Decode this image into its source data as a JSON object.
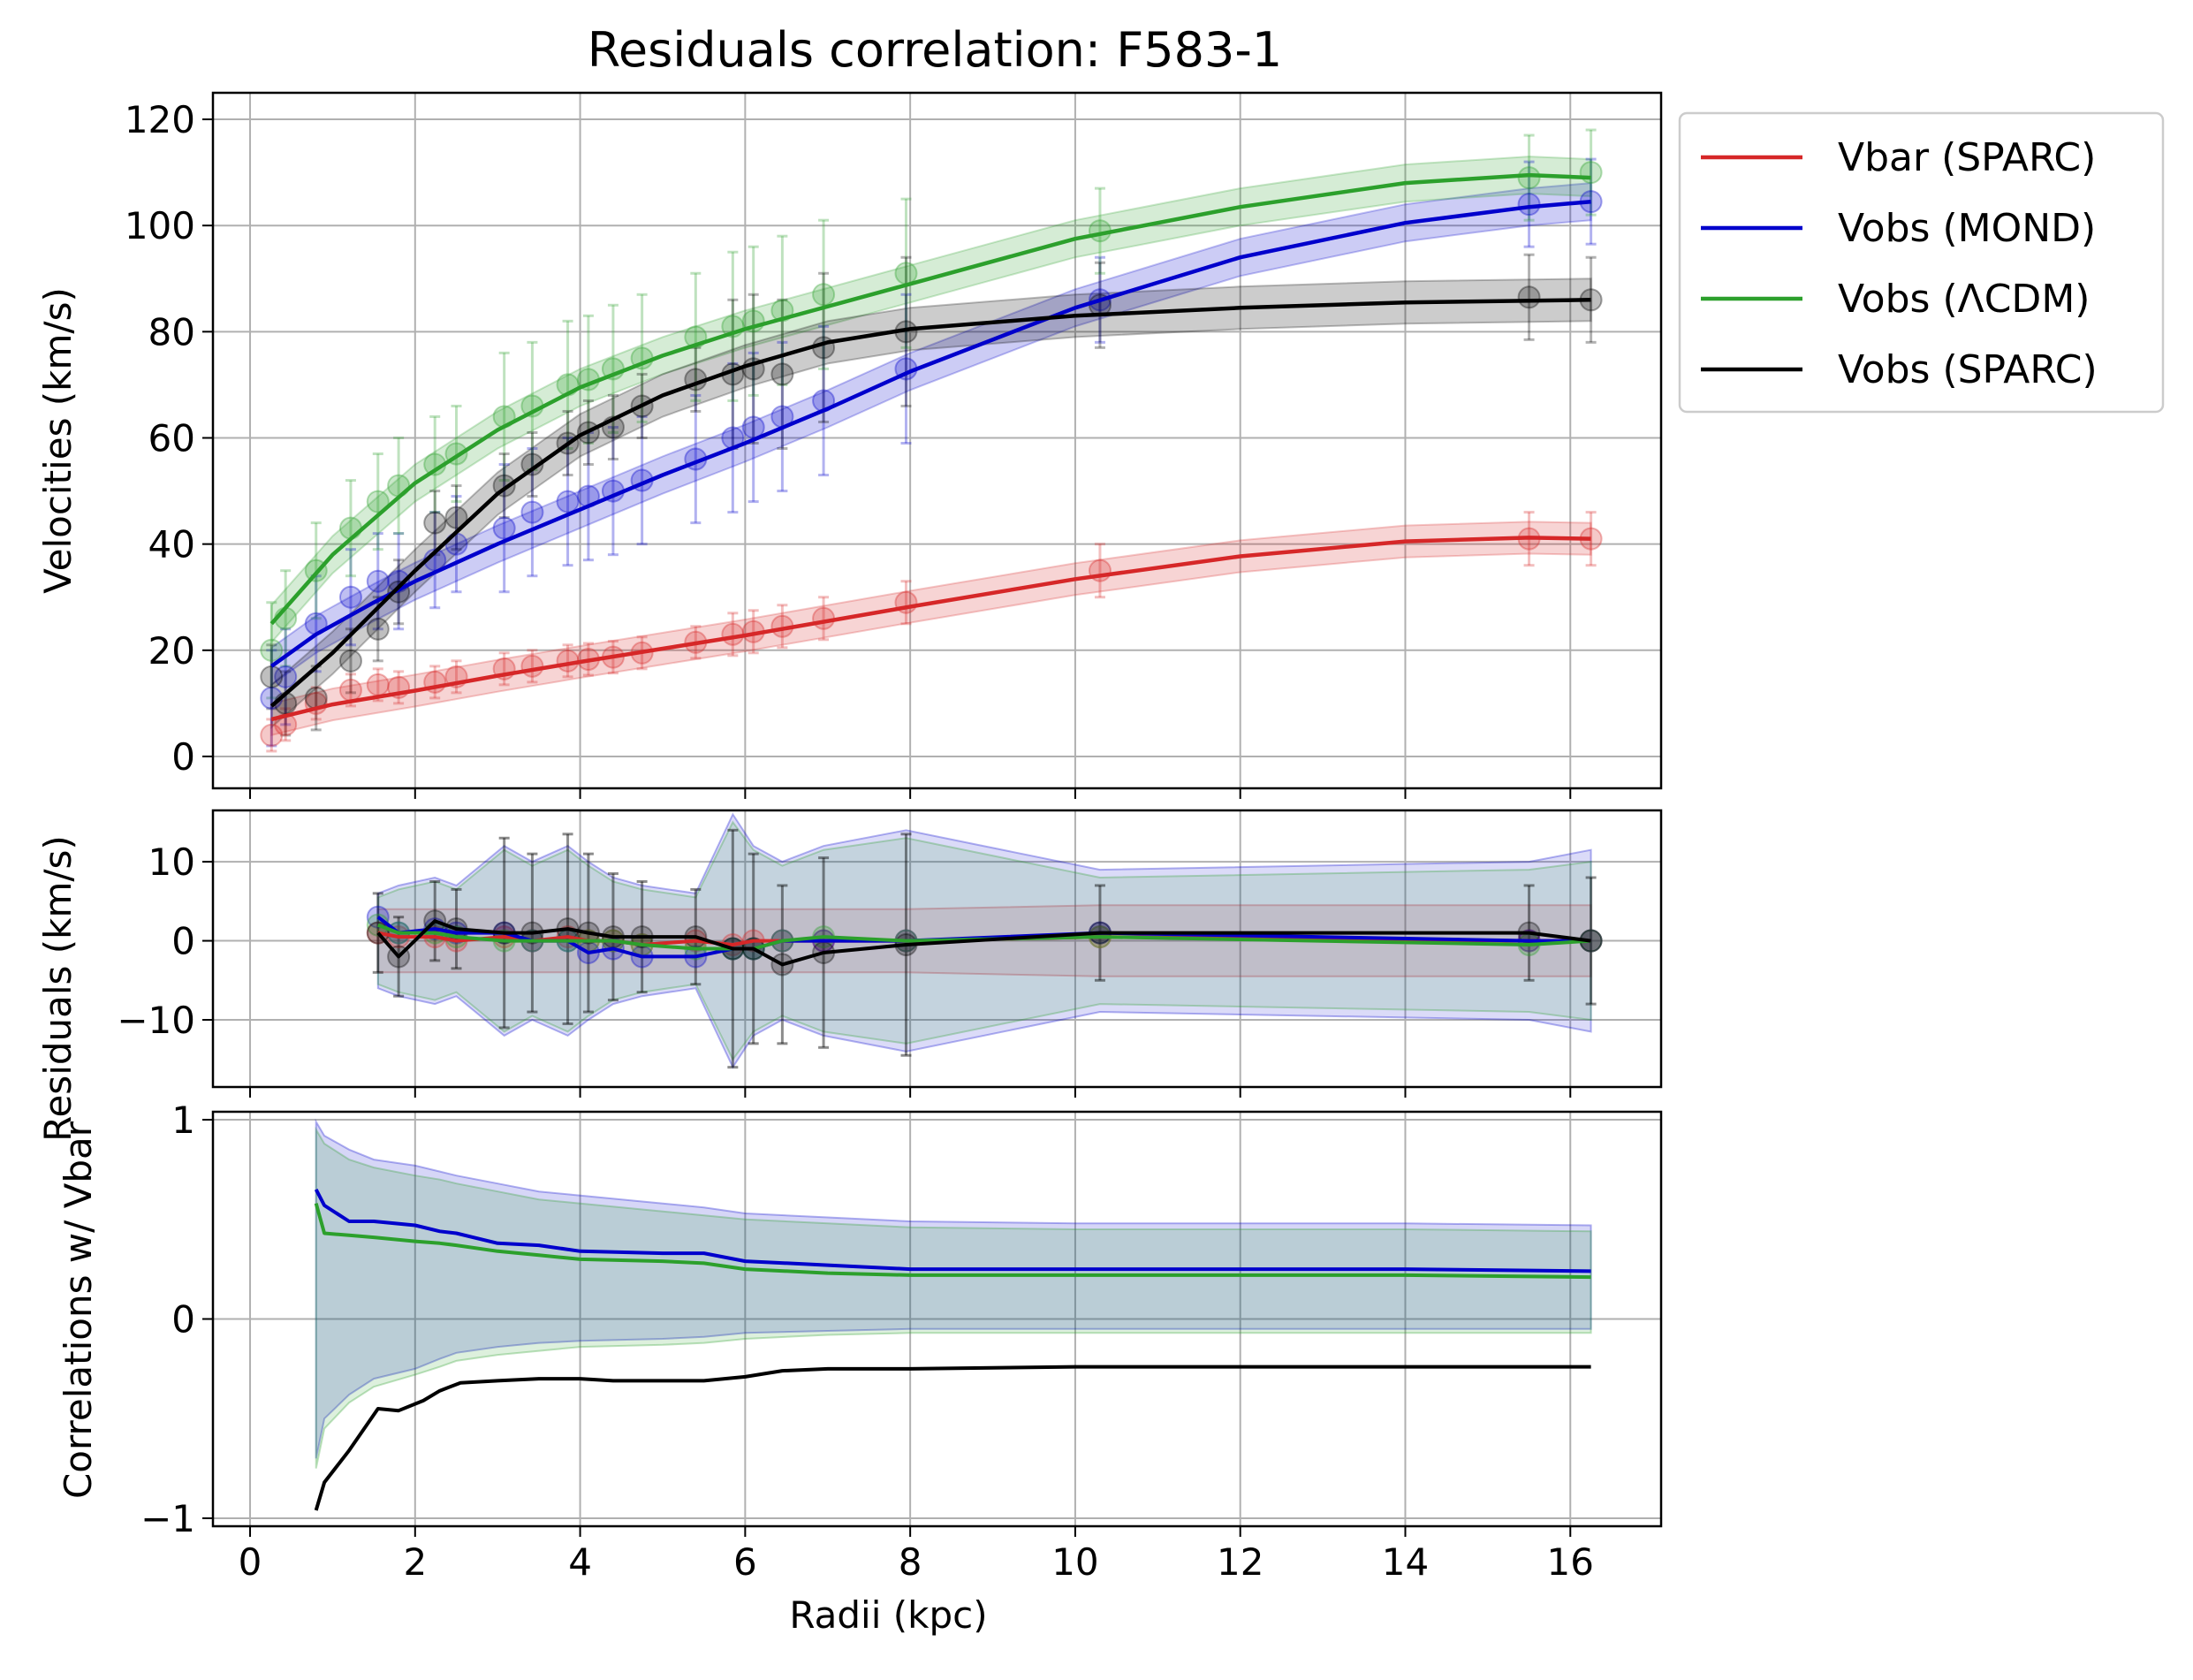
{
  "title": "Residuals correlation: F583-1",
  "colors": {
    "vbar": "#d62728",
    "mond": "#0000cc",
    "lcdm": "#2ca02c",
    "sparc": "#000000",
    "grid": "#b0b0b0"
  },
  "chart_data": [
    {
      "type": "line",
      "panel": "velocities",
      "title": "Residuals correlation: F583-1",
      "ylabel": "Velocities (km/s)",
      "xlabel": "",
      "xlim": [
        -0.45,
        17.1
      ],
      "ylim": [
        -6,
        125
      ],
      "grid": true,
      "x_ticks": [
        0,
        2,
        4,
        6,
        8,
        10,
        12,
        14,
        16
      ],
      "y_ticks": [
        0,
        20,
        40,
        60,
        80,
        100,
        120
      ],
      "legend": {
        "placement": "outside-top-right",
        "entries": [
          "Vbar (SPARC)",
          "Vobs (MOND)",
          "Vobs (ΛCDM)",
          "Vobs (SPARC)"
        ]
      },
      "radii": [
        0.26,
        0.43,
        0.8,
        1.22,
        1.55,
        1.8,
        2.24,
        2.5,
        3.08,
        3.42,
        3.85,
        4.1,
        4.4,
        4.75,
        5.4,
        5.85,
        6.1,
        6.45,
        6.95,
        7.95,
        10.3,
        15.5,
        16.25
      ],
      "series": [
        {
          "name": "Vbar (SPARC)",
          "key": "vbar",
          "values": [
            4,
            6,
            10,
            12.5,
            13.5,
            13,
            14,
            15,
            16.5,
            17,
            18,
            18.3,
            18.7,
            19.5,
            21.5,
            23,
            23.5,
            24.5,
            26,
            29,
            35,
            41,
            41
          ],
          "errors": [
            3,
            3,
            3,
            3,
            3,
            3,
            3,
            3,
            3,
            3,
            3,
            3,
            3,
            3,
            3,
            4,
            4,
            4,
            4,
            4,
            5,
            5,
            5
          ],
          "fit": [
            [
              0.26,
              7
            ],
            [
              1,
              9.8
            ],
            [
              2,
              12.4
            ],
            [
              3,
              15.2
            ],
            [
              4,
              17.8
            ],
            [
              5,
              20.3
            ],
            [
              6,
              22.8
            ],
            [
              8,
              28.2
            ],
            [
              10,
              33.4
            ],
            [
              12,
              37.7
            ],
            [
              14,
              40.5
            ],
            [
              15.5,
              41.2
            ],
            [
              16.25,
              41
            ]
          ]
        },
        {
          "name": "Vobs (MOND)",
          "key": "mond",
          "values": [
            11,
            15,
            25,
            30,
            33,
            33,
            37,
            40,
            43,
            46,
            48,
            49,
            50,
            52,
            56,
            60,
            62,
            64,
            67,
            73,
            86,
            104,
            104.5
          ],
          "errors": [
            9,
            9,
            9,
            9,
            9,
            9,
            9,
            9,
            12,
            12,
            12,
            12,
            12,
            12,
            12,
            14,
            14,
            14,
            14,
            14,
            8,
            8,
            8
          ],
          "fit": [
            [
              0.26,
              17
            ],
            [
              0.8,
              23
            ],
            [
              1.5,
              29
            ],
            [
              2,
              33
            ],
            [
              3,
              40
            ],
            [
              4,
              46.5
            ],
            [
              5,
              53
            ],
            [
              6,
              59
            ],
            [
              7,
              65.5
            ],
            [
              8,
              72.5
            ],
            [
              10,
              84.5
            ],
            [
              12,
              94
            ],
            [
              14,
              100.5
            ],
            [
              15.5,
              103.5
            ],
            [
              16.25,
              104.5
            ]
          ]
        },
        {
          "name": "Vobs (ΛCDM)",
          "key": "lcdm",
          "values": [
            20,
            26,
            35,
            43,
            48,
            51,
            55,
            57,
            64,
            66,
            70,
            71,
            73,
            75,
            79,
            81,
            82,
            84,
            87,
            91,
            99,
            109,
            110
          ],
          "errors": [
            9,
            9,
            9,
            9,
            9,
            9,
            9,
            9,
            12,
            12,
            12,
            12,
            12,
            12,
            12,
            14,
            14,
            14,
            14,
            14,
            8,
            8,
            8
          ],
          "fit": [
            [
              0.26,
              25
            ],
            [
              1,
              38
            ],
            [
              2,
              51.5
            ],
            [
              3,
              61.5
            ],
            [
              4,
              69.5
            ],
            [
              5,
              75.5
            ],
            [
              6,
              80.5
            ],
            [
              8,
              89
            ],
            [
              10,
              97.5
            ],
            [
              12,
              103.5
            ],
            [
              14,
              108
            ],
            [
              15.5,
              109.5
            ],
            [
              16.25,
              109
            ]
          ]
        },
        {
          "name": "Vobs (SPARC)",
          "key": "sparc",
          "values": [
            15,
            10,
            11,
            18,
            24,
            31,
            44,
            45,
            51,
            55,
            59,
            61,
            62,
            66,
            71,
            72,
            73,
            72,
            77,
            80,
            85,
            86.5,
            86
          ],
          "errors": [
            6,
            6,
            6,
            6,
            6,
            6,
            6,
            6,
            6,
            6,
            6,
            6,
            6,
            6,
            6,
            14,
            14,
            14,
            14,
            14,
            8,
            8,
            8
          ],
          "fit": [
            [
              0.26,
              9.5
            ],
            [
              1,
              19.5
            ],
            [
              2,
              35
            ],
            [
              3,
              49.5
            ],
            [
              4,
              60.5
            ],
            [
              5,
              68
            ],
            [
              6,
              73.5
            ],
            [
              7,
              78
            ],
            [
              8,
              80.5
            ],
            [
              10,
              83
            ],
            [
              12,
              84.5
            ],
            [
              14,
              85.5
            ],
            [
              16.25,
              86
            ]
          ]
        }
      ]
    },
    {
      "type": "line",
      "panel": "residuals",
      "ylabel": "Residuals (km/s)",
      "xlim": [
        -0.45,
        17.1
      ],
      "ylim": [
        -18.5,
        16.5
      ],
      "grid": true,
      "y_ticks": [
        10,
        0,
        -10
      ],
      "y_tick_labels": [
        "10",
        "0",
        "−10"
      ],
      "x": [
        1.55,
        1.8,
        2.24,
        2.5,
        3.08,
        3.42,
        3.85,
        4.1,
        4.4,
        4.75,
        5.4,
        5.85,
        6.1,
        6.45,
        6.95,
        7.95,
        10.3,
        15.5,
        16.25
      ],
      "series": [
        {
          "name": "Vbar (SPARC)",
          "key": "vbar",
          "values": [
            1,
            0.5,
            0.5,
            0,
            0.5,
            0,
            0.5,
            0,
            0,
            -0.5,
            0,
            -0.5,
            0,
            0,
            0,
            0,
            0.5,
            0,
            0
          ],
          "band": [
            4,
            4,
            4,
            4,
            4,
            4,
            4,
            4,
            4,
            4,
            4,
            4,
            4,
            4,
            4,
            4,
            4.5,
            4.5,
            4.5
          ]
        },
        {
          "name": "Vobs (MOND)",
          "key": "mond",
          "values": [
            3,
            1,
            1.5,
            1,
            1,
            0,
            0,
            -1.5,
            -1,
            -2,
            -2,
            -1,
            -1,
            0,
            0,
            0,
            1,
            0,
            0
          ],
          "band": [
            6,
            7,
            8,
            7,
            12,
            10,
            12,
            10,
            8,
            7,
            6,
            16,
            12,
            10,
            12,
            14,
            9,
            10,
            11.5
          ]
        },
        {
          "name": "Vobs (ΛCDM)",
          "key": "lcdm",
          "values": [
            2,
            1,
            1,
            0.5,
            0,
            0,
            0,
            0,
            0,
            -0.5,
            -1,
            -1,
            -1,
            0,
            0.5,
            0,
            0.5,
            -0.5,
            0
          ],
          "band": [
            5.5,
            6.5,
            7.5,
            6.5,
            11.5,
            9.5,
            11.5,
            9.5,
            7.5,
            6.5,
            5.5,
            15,
            11.5,
            9.5,
            11.5,
            13,
            8,
            9,
            10
          ]
        },
        {
          "name": "Vobs (SPARC)",
          "key": "sparc",
          "values": [
            1,
            -2,
            2.5,
            1.5,
            1,
            1,
            1.5,
            1,
            0.5,
            0.5,
            0.5,
            -1,
            -1,
            -3,
            -1.5,
            -0.5,
            1,
            1,
            0
          ],
          "errors": [
            5,
            5,
            5,
            5,
            12,
            10,
            12,
            10,
            8,
            7,
            6,
            15,
            12,
            10,
            12,
            14,
            6,
            6,
            8
          ]
        }
      ]
    },
    {
      "type": "line",
      "panel": "correlations",
      "ylabel": "Correlations w/ Vbar",
      "xlabel": "Radii (kpc)",
      "xlim": [
        -0.45,
        17.1
      ],
      "ylim": [
        -1.04,
        1.04
      ],
      "grid": true,
      "x_ticks": [
        0,
        2,
        4,
        6,
        8,
        10,
        12,
        14,
        16
      ],
      "y_ticks": [
        1,
        0,
        -1
      ],
      "y_tick_labels": [
        "1",
        "0",
        "−1"
      ],
      "series": [
        {
          "name": "Vobs (MOND)",
          "key": "mond",
          "x": [
            0.8,
            0.9,
            1.2,
            1.5,
            2,
            2.3,
            2.5,
            3,
            3.5,
            4,
            5,
            5.5,
            6,
            7,
            8,
            10,
            12,
            14,
            16.25
          ],
          "values": [
            0.65,
            0.57,
            0.49,
            0.49,
            0.47,
            0.44,
            0.43,
            0.38,
            0.37,
            0.34,
            0.33,
            0.33,
            0.29,
            0.27,
            0.25,
            0.25,
            0.25,
            0.25,
            0.24
          ],
          "band_upper": [
            0.99,
            0.92,
            0.85,
            0.8,
            0.77,
            0.74,
            0.72,
            0.68,
            0.64,
            0.62,
            0.58,
            0.56,
            0.53,
            0.51,
            0.49,
            0.48,
            0.48,
            0.48,
            0.47
          ],
          "band_lower": [
            -0.7,
            -0.5,
            -0.38,
            -0.3,
            -0.25,
            -0.2,
            -0.17,
            -0.14,
            -0.12,
            -0.11,
            -0.1,
            -0.09,
            -0.07,
            -0.06,
            -0.05,
            -0.05,
            -0.05,
            -0.05,
            -0.05
          ]
        },
        {
          "name": "Vobs (ΛCDM)",
          "key": "lcdm",
          "x": [
            0.8,
            0.9,
            1.2,
            1.5,
            2,
            2.3,
            2.5,
            3,
            3.5,
            4,
            5,
            5.5,
            6,
            7,
            8,
            10,
            12,
            14,
            16.25
          ],
          "values": [
            0.58,
            0.43,
            0.42,
            0.41,
            0.39,
            0.38,
            0.37,
            0.34,
            0.32,
            0.3,
            0.29,
            0.28,
            0.25,
            0.23,
            0.22,
            0.22,
            0.22,
            0.22,
            0.21
          ],
          "band_upper": [
            0.95,
            0.88,
            0.8,
            0.76,
            0.72,
            0.7,
            0.68,
            0.64,
            0.6,
            0.58,
            0.54,
            0.52,
            0.5,
            0.48,
            0.46,
            0.45,
            0.45,
            0.45,
            0.44
          ],
          "band_lower": [
            -0.75,
            -0.55,
            -0.42,
            -0.34,
            -0.28,
            -0.24,
            -0.21,
            -0.18,
            -0.16,
            -0.14,
            -0.13,
            -0.12,
            -0.1,
            -0.08,
            -0.07,
            -0.07,
            -0.07,
            -0.07,
            -0.07
          ]
        },
        {
          "name": "Vobs (SPARC)",
          "key": "sparc",
          "x": [
            0.8,
            0.9,
            1.2,
            1.55,
            1.8,
            2.1,
            2.3,
            2.55,
            3,
            3.5,
            4,
            4.4,
            5,
            5.5,
            6,
            6.45,
            7,
            8,
            10,
            12,
            14,
            16.25
          ],
          "values": [
            -0.96,
            -0.82,
            -0.66,
            -0.45,
            -0.46,
            -0.41,
            -0.36,
            -0.32,
            -0.31,
            -0.3,
            -0.3,
            -0.31,
            -0.31,
            -0.31,
            -0.29,
            -0.26,
            -0.25,
            -0.25,
            -0.24,
            -0.24,
            -0.24,
            -0.24
          ]
        }
      ]
    }
  ]
}
